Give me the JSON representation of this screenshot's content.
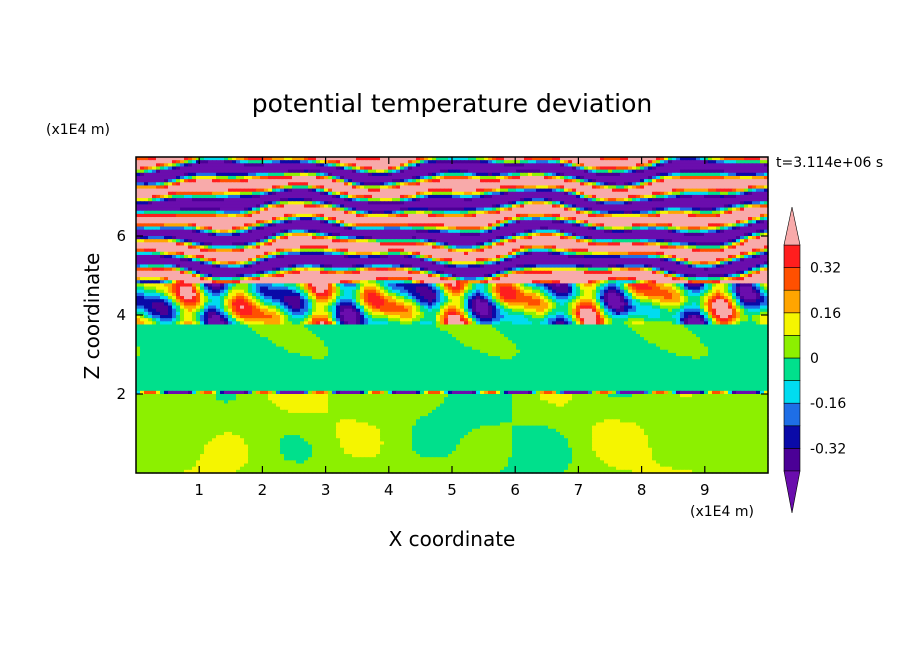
{
  "chart_data": {
    "type": "heatmap",
    "title": "potential temperature deviation",
    "xlabel": "X coordinate",
    "ylabel": "Z coordinate",
    "x_unit": "(x1E4 m)",
    "z_unit": "(x1E4 m)",
    "time_label": "t=3.114e+06 s",
    "xlim": [
      0,
      10
    ],
    "ylim": [
      0,
      8
    ],
    "x_ticks": [
      "1",
      "2",
      "3",
      "4",
      "5",
      "6",
      "7",
      "8",
      "9"
    ],
    "y_ticks": [
      "2",
      "4",
      "6"
    ],
    "colorbar": {
      "labels": [
        "0.32",
        "0.16",
        "0",
        "-0.16",
        "-0.32"
      ],
      "label_values": [
        0.32,
        0.16,
        0,
        -0.16,
        -0.32
      ],
      "levels": [
        -0.4,
        -0.32,
        -0.24,
        -0.16,
        -0.08,
        0,
        0.08,
        0.16,
        0.24,
        0.32,
        0.4
      ],
      "colors": [
        "#6a0dad",
        "#4b0096",
        "#0a0aa8",
        "#1e6ee6",
        "#00dcf0",
        "#00e08c",
        "#8cf000",
        "#f5f500",
        "#ffa500",
        "#ff5000",
        "#ff1e1e",
        "#f8aaaa"
      ],
      "extend": "both"
    },
    "layers": [
      {
        "z_range": [
          0,
          2.0
        ],
        "dominant": "0 to 0.08",
        "description_color": "#8cf000"
      },
      {
        "z_range": [
          2.0,
          3.8
        ],
        "dominant": "-0.08 to 0",
        "description_color": "#00e08c"
      },
      {
        "z_range": [
          3.8,
          4.8
        ],
        "dominant": "mixed -0.4 to 0.4",
        "description_color": "#f5f500"
      },
      {
        "z_range": [
          4.8,
          8.0
        ],
        "dominant": "alternating < -0.4 and > 0.4",
        "description_color": "#f8aaaa"
      }
    ]
  }
}
